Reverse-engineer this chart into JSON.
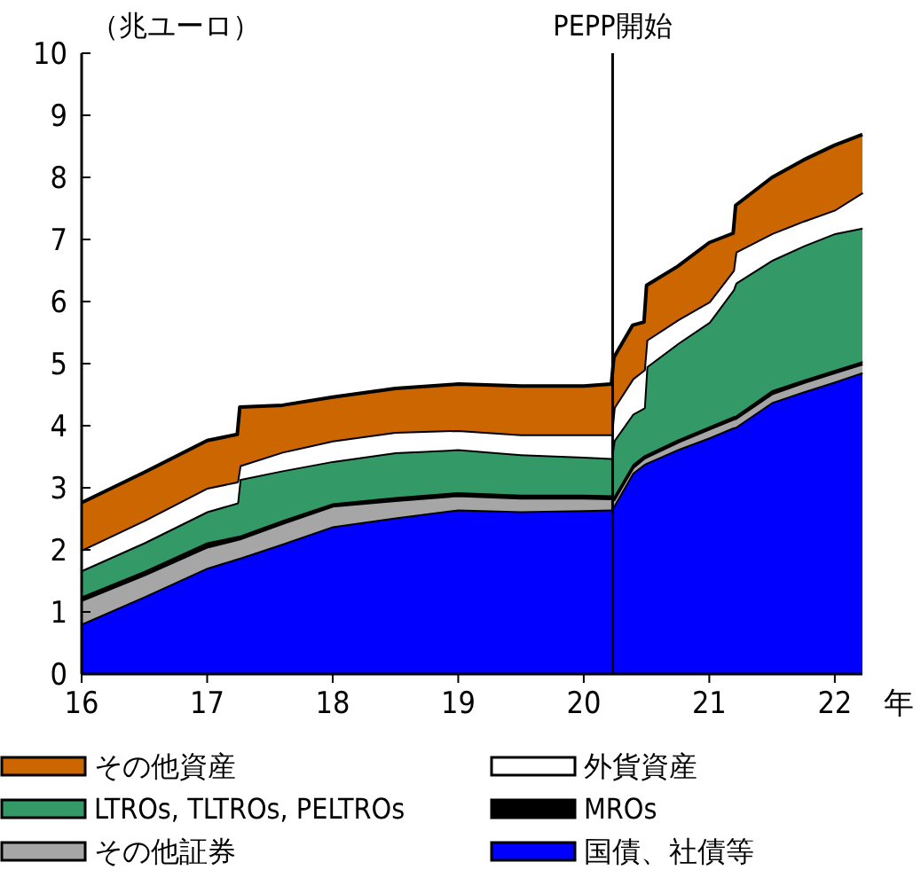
{
  "chart_data": {
    "type": "area",
    "stacked": true,
    "ylabel": "（兆ユーロ）",
    "xlabel": "年",
    "x": [
      16,
      16.5,
      17,
      17.24,
      17.26,
      17.6,
      18,
      18.5,
      19,
      19.5,
      20,
      20.22,
      20.24,
      20.39,
      20.48,
      20.5,
      20.75,
      21,
      21.19,
      21.21,
      21.5,
      21.75,
      22,
      22.22
    ],
    "series": [
      {
        "name": "国債、社債等",
        "color": "#0000ff",
        "values": [
          0.81,
          1.25,
          1.71,
          1.86,
          1.87,
          2.1,
          2.38,
          2.52,
          2.65,
          2.62,
          2.64,
          2.65,
          2.71,
          3.24,
          3.38,
          3.4,
          3.62,
          3.81,
          3.97,
          3.98,
          4.38,
          4.55,
          4.71,
          4.86
        ]
      },
      {
        "name": "その他証券",
        "color": "#a6a6a6",
        "values": [
          0.38,
          0.35,
          0.34,
          0.31,
          0.31,
          0.33,
          0.33,
          0.28,
          0.23,
          0.22,
          0.2,
          0.18,
          0.1,
          0.09,
          0.1,
          0.1,
          0.12,
          0.14,
          0.14,
          0.14,
          0.14,
          0.15,
          0.15,
          0.14
        ]
      },
      {
        "name": "MROs",
        "color": "#000000",
        "values": [
          0.06,
          0.06,
          0.07,
          0.05,
          0.05,
          0.05,
          0.04,
          0.05,
          0.05,
          0.05,
          0.05,
          0.05,
          0.05,
          0.05,
          0.04,
          0.04,
          0.04,
          0.04,
          0.04,
          0.04,
          0.05,
          0.04,
          0.04,
          0.04
        ]
      },
      {
        "name": "LTROs, TLTROs, PELTROs",
        "color": "#339966",
        "values": [
          0.42,
          0.46,
          0.5,
          0.54,
          0.91,
          0.8,
          0.68,
          0.72,
          0.69,
          0.65,
          0.61,
          0.6,
          0.9,
          0.81,
          0.77,
          1.41,
          1.55,
          1.68,
          2.04,
          2.14,
          2.1,
          2.16,
          2.2,
          2.15
        ]
      },
      {
        "name": "外貨資産",
        "color": "#ffffff",
        "values": [
          0.33,
          0.36,
          0.38,
          0.34,
          0.22,
          0.3,
          0.33,
          0.33,
          0.31,
          0.32,
          0.36,
          0.38,
          0.53,
          0.57,
          0.61,
          0.43,
          0.38,
          0.33,
          0.31,
          0.5,
          0.43,
          0.4,
          0.38,
          0.57
        ]
      },
      {
        "name": "その他資産",
        "color": "#cc6600",
        "values": [
          0.76,
          0.77,
          0.76,
          0.76,
          0.94,
          0.75,
          0.7,
          0.7,
          0.74,
          0.78,
          0.78,
          0.81,
          0.81,
          0.86,
          0.77,
          0.88,
          0.86,
          0.95,
          0.6,
          0.75,
          0.9,
          0.98,
          1.04,
          0.93
        ]
      }
    ],
    "xlim": [
      16,
      22.22
    ],
    "xticks": [
      16,
      17,
      18,
      19,
      20,
      21,
      22
    ],
    "ylim": [
      0,
      10
    ],
    "yticks": [
      0,
      1,
      2,
      3,
      4,
      5,
      6,
      7,
      8,
      9,
      10
    ],
    "ref_lines": [
      {
        "axis": "x",
        "value": 20.23,
        "label": "PEPP開始",
        "color": "#000000"
      }
    ],
    "grid": false,
    "legend": "bottom"
  }
}
